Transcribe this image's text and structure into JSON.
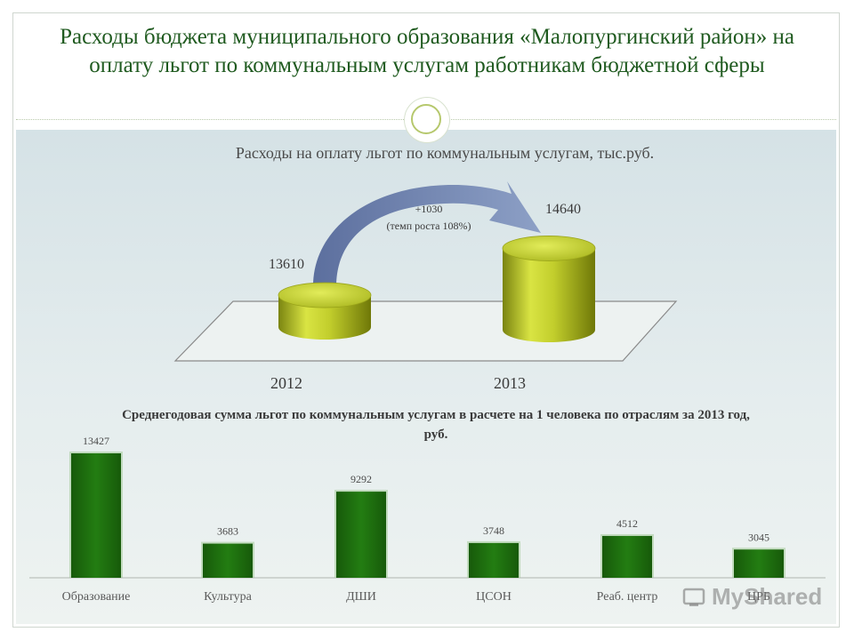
{
  "title": "Расходы бюджета муниципального образования «Малопургинский район» на оплату льгот по коммунальным услугам работникам бюджетной сферы",
  "watermark": "MyShared",
  "colors": {
    "title": "#1f5a1f",
    "cylinder": "#c8d43a",
    "bar": "#1e6b0f",
    "arrow": "#6a7ea8"
  },
  "chart_data": [
    {
      "type": "bar",
      "title": "Расходы на оплату льгот по коммунальным услугам, тыс.руб.",
      "categories": [
        "2012",
        "2013"
      ],
      "values": [
        13610,
        14640
      ],
      "value_labels": [
        "13610",
        "14640"
      ],
      "annotation": {
        "line1": "+1030",
        "line2": "(темп роста 108%)"
      },
      "style": "3d-cylinder"
    },
    {
      "type": "bar",
      "title": "Среднегодовая сумма льгот по коммунальным услугам в расчете на 1 человека по отраслям  за 2013 год, руб.",
      "categories": [
        "Образование",
        "Культура",
        "ДШИ",
        "ЦСОН",
        "Реаб. центр",
        "ЦРБ"
      ],
      "values": [
        13427,
        3683,
        9292,
        3748,
        4512,
        3045
      ],
      "value_labels": [
        "13427",
        "3683",
        "9292",
        "3748",
        "4512",
        "3045"
      ]
    }
  ]
}
